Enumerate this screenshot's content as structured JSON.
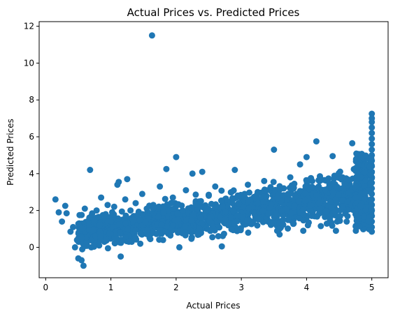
{
  "chart_data": {
    "type": "scatter",
    "title": "Actual Prices vs. Predicted Prices",
    "xlabel": "Actual Prices",
    "ylabel": "Predicted Prices",
    "xlim": [
      -0.1,
      5.25
    ],
    "ylim": [
      -1.65,
      12.25
    ],
    "x_ticks": [
      0,
      1,
      2,
      3,
      4,
      5
    ],
    "y_ticks": [
      0,
      2,
      4,
      6,
      8,
      10,
      12
    ],
    "grid": false,
    "legend": "none",
    "marker_color": "#1f77b4",
    "series": [
      {
        "points": [
          [
            0.15,
            2.6
          ],
          [
            0.2,
            1.9
          ],
          [
            0.25,
            1.4
          ],
          [
            0.3,
            2.25
          ],
          [
            0.32,
            1.85
          ],
          [
            0.38,
            0.85
          ],
          [
            0.42,
            1.1
          ],
          [
            0.45,
            0.0
          ],
          [
            0.48,
            0.4
          ],
          [
            0.5,
            -0.6
          ],
          [
            0.52,
            1.75
          ],
          [
            0.55,
            -0.7
          ],
          [
            0.58,
            -1.0
          ],
          [
            0.6,
            2.1
          ],
          [
            0.62,
            0.3
          ],
          [
            0.65,
            1.2
          ],
          [
            0.68,
            4.2
          ],
          [
            0.7,
            0.0
          ],
          [
            0.72,
            1.5
          ],
          [
            0.75,
            0.5
          ],
          [
            0.78,
            2.0
          ],
          [
            0.8,
            1.3
          ],
          [
            0.82,
            0.1
          ],
          [
            0.85,
            2.7
          ],
          [
            0.88,
            1.0
          ],
          [
            0.9,
            0.3
          ],
          [
            0.92,
            1.8
          ],
          [
            0.95,
            2.3
          ],
          [
            0.98,
            1.1
          ],
          [
            1.0,
            0.6
          ],
          [
            1.02,
            1.9
          ],
          [
            1.05,
            2.2
          ],
          [
            1.08,
            0.7
          ],
          [
            1.1,
            3.4
          ],
          [
            1.12,
            3.55
          ],
          [
            1.15,
            -0.5
          ],
          [
            1.18,
            1.5
          ],
          [
            1.22,
            2.6
          ],
          [
            1.25,
            3.7
          ],
          [
            1.28,
            1.0
          ],
          [
            1.3,
            2.0
          ],
          [
            1.32,
            0.3
          ],
          [
            1.35,
            1.7
          ],
          [
            1.38,
            2.4
          ],
          [
            1.4,
            1.2
          ],
          [
            1.45,
            0.2
          ],
          [
            1.48,
            2.9
          ],
          [
            1.5,
            1.4
          ],
          [
            1.55,
            2.1
          ],
          [
            1.6,
            0.8
          ],
          [
            1.63,
            11.5
          ],
          [
            1.65,
            2.3
          ],
          [
            1.7,
            1.6
          ],
          [
            1.75,
            3.3
          ],
          [
            1.8,
            0.4
          ],
          [
            1.85,
            4.25
          ],
          [
            1.9,
            1.8
          ],
          [
            1.95,
            2.7
          ],
          [
            2.0,
            4.9
          ],
          [
            2.05,
            0.0
          ],
          [
            2.1,
            2.0
          ],
          [
            2.15,
            3.1
          ],
          [
            2.2,
            1.5
          ],
          [
            2.25,
            4.0
          ],
          [
            2.3,
            2.5
          ],
          [
            2.35,
            0.7
          ],
          [
            2.4,
            4.1
          ],
          [
            2.45,
            1.9
          ],
          [
            2.5,
            2.8
          ],
          [
            2.55,
            1.7
          ],
          [
            2.6,
            3.3
          ],
          [
            2.65,
            2.1
          ],
          [
            2.7,
            0.05
          ],
          [
            2.75,
            2.6
          ],
          [
            2.8,
            1.2
          ],
          [
            2.85,
            3.0
          ],
          [
            2.9,
            4.2
          ],
          [
            2.95,
            2.2
          ],
          [
            3.0,
            1.6
          ],
          [
            3.05,
            2.9
          ],
          [
            3.1,
            3.4
          ],
          [
            3.15,
            1.4
          ],
          [
            3.2,
            2.5
          ],
          [
            3.25,
            3.0
          ],
          [
            3.3,
            1.9
          ],
          [
            3.35,
            3.6
          ],
          [
            3.4,
            2.3
          ],
          [
            3.45,
            1.3
          ],
          [
            3.5,
            5.3
          ],
          [
            3.55,
            0.9
          ],
          [
            3.6,
            2.7
          ],
          [
            3.65,
            3.2
          ],
          [
            3.7,
            2.0
          ],
          [
            3.75,
            3.8
          ],
          [
            3.8,
            1.5
          ],
          [
            3.85,
            2.9
          ],
          [
            3.9,
            4.5
          ],
          [
            3.95,
            0.9
          ],
          [
            4.0,
            4.9
          ],
          [
            4.02,
            1.2
          ],
          [
            4.05,
            3.0
          ],
          [
            4.1,
            2.4
          ],
          [
            4.15,
            5.75
          ],
          [
            4.2,
            3.6
          ],
          [
            4.25,
            1.9
          ],
          [
            4.3,
            2.8
          ],
          [
            4.35,
            3.4
          ],
          [
            4.4,
            4.95
          ],
          [
            4.45,
            0.9
          ],
          [
            4.47,
            1.4
          ],
          [
            4.5,
            2.6
          ],
          [
            4.55,
            3.8
          ],
          [
            4.6,
            2.2
          ],
          [
            4.65,
            3.1
          ],
          [
            4.7,
            5.65
          ],
          [
            4.75,
            1.8
          ],
          [
            4.8,
            4.9
          ],
          [
            4.85,
            4.1
          ],
          [
            4.9,
            2.6
          ],
          [
            4.95,
            3.9
          ],
          [
            5.0,
            7.25
          ],
          [
            5.0,
            7.0
          ],
          [
            5.0,
            6.8
          ],
          [
            5.0,
            6.5
          ],
          [
            5.0,
            6.2
          ],
          [
            5.0,
            5.9
          ],
          [
            5.0,
            5.6
          ],
          [
            5.0,
            5.3
          ],
          [
            5.0,
            5.0
          ],
          [
            5.0,
            4.7
          ],
          [
            5.0,
            4.4
          ],
          [
            5.0,
            4.1
          ],
          [
            5.0,
            3.8
          ],
          [
            5.0,
            3.5
          ],
          [
            5.0,
            3.2
          ],
          [
            5.0,
            2.9
          ],
          [
            5.0,
            2.6
          ],
          [
            5.0,
            2.3
          ],
          [
            5.0,
            2.0
          ],
          [
            5.0,
            1.7
          ],
          [
            5.0,
            1.4
          ],
          [
            5.0,
            1.1
          ],
          [
            5.0,
            0.85
          ]
        ]
      }
    ]
  }
}
